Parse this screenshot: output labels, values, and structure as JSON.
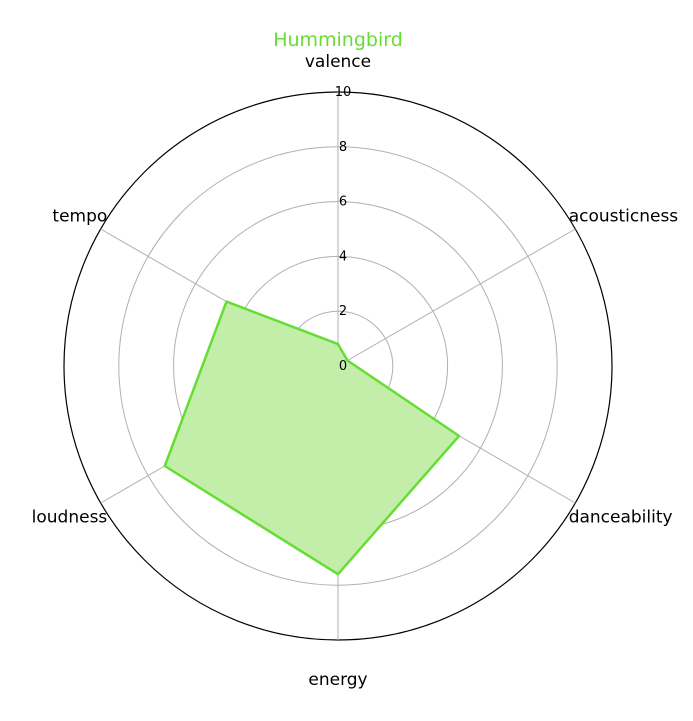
{
  "chart_data": {
    "type": "radar",
    "title": "Hummingbird",
    "axes": [
      "valence",
      "acousticness",
      "danceability",
      "energy",
      "loudness",
      "tempo"
    ],
    "series": [
      {
        "values": [
          0.8,
          0.4,
          5.1,
          7.6,
          7.3,
          4.7
        ]
      }
    ],
    "radial_ticks": [
      "0",
      "2",
      "4",
      "6",
      "8",
      "10"
    ],
    "rlim": [
      0,
      10
    ],
    "grid": true,
    "colors": {
      "line": "#66dd33",
      "fill": "#c2eeaa",
      "title": "#66dd33",
      "grid": "#b0b0b0",
      "spine": "#000000"
    }
  }
}
